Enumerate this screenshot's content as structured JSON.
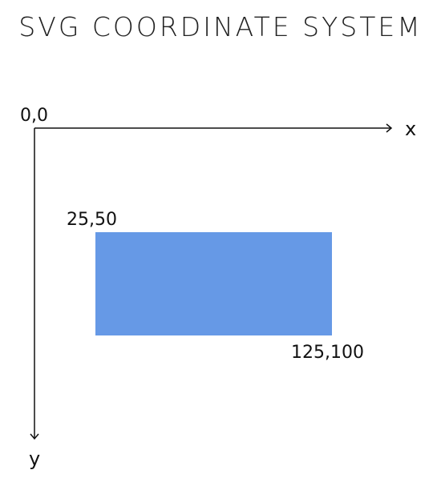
{
  "title": "SVG COORDINATE SYSTEM",
  "axes": {
    "origin_label": "0,0",
    "x_label": "x",
    "y_label": "y"
  },
  "rect": {
    "top_left_label": "25,50",
    "bottom_right_label": "125,100",
    "fill": "#6699e6"
  },
  "colors": {
    "axis": "#111111",
    "text": "#111111"
  }
}
